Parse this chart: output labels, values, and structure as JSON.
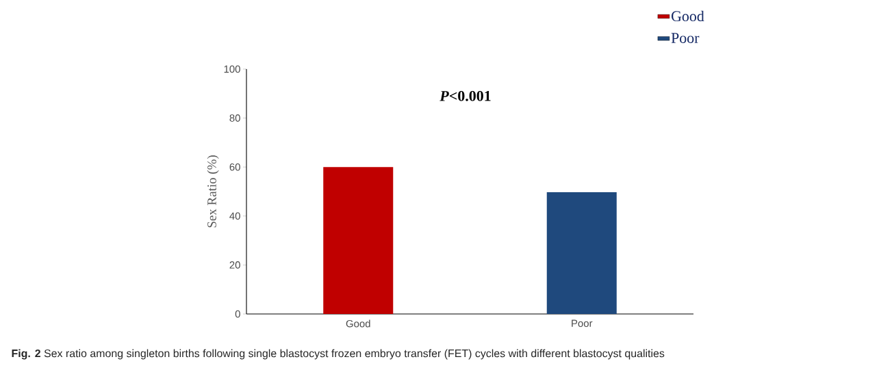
{
  "chart_data": {
    "type": "bar",
    "ylabel": "Sex Ratio (%)",
    "categories": [
      "Good",
      "Poor"
    ],
    "series": [
      {
        "name": "Good",
        "color": "#c00000",
        "values": [
          60,
          null
        ]
      },
      {
        "name": "Poor",
        "color": "#1f497d",
        "values": [
          null,
          49.7
        ]
      }
    ],
    "ylim": [
      0,
      100
    ],
    "yticks": [
      0,
      20,
      40,
      60,
      80,
      100
    ],
    "grid": false,
    "legend": "top right",
    "annotations": [
      "*P*<0.001",
      "**Fig. 2** Sex ratio among singleton births following single blastocyst frozen embryo transfer (FET) cycles with different blastocyst qualities"
    ]
  }
}
